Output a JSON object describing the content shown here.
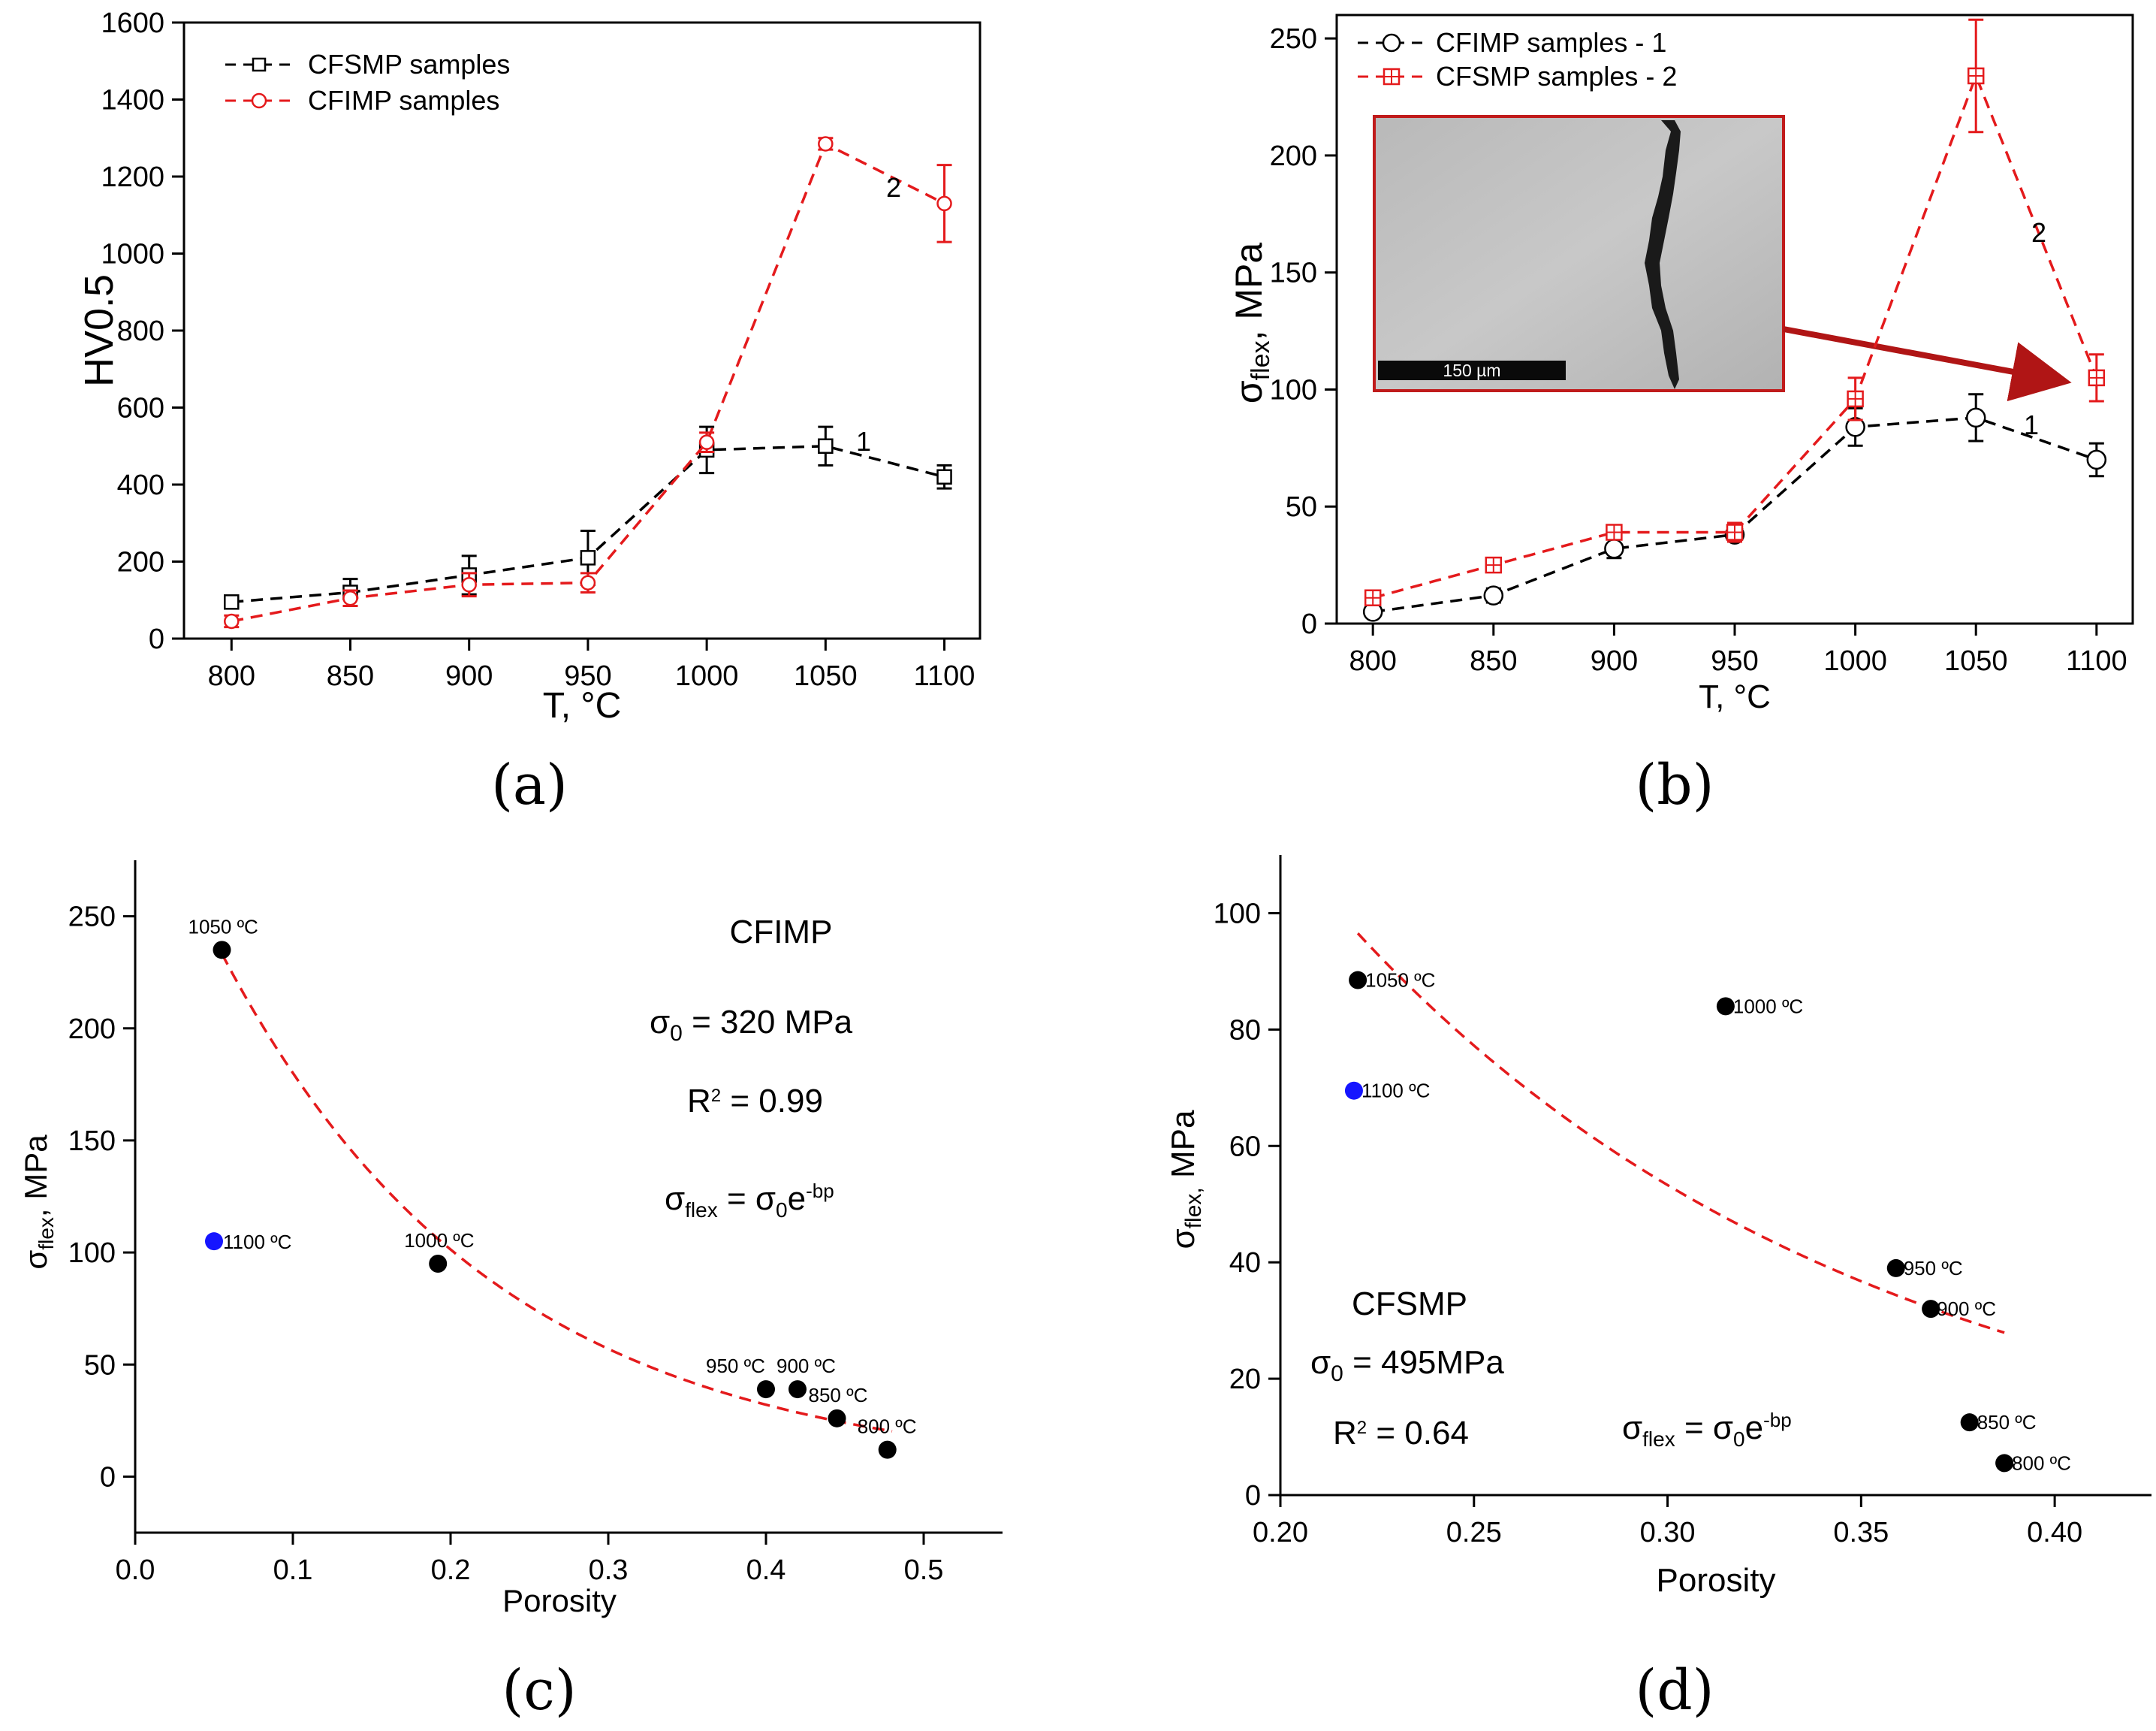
{
  "chart_data": [
    {
      "id": "a",
      "type": "line",
      "panel_label": "(a)",
      "xlabel": "T, °C",
      "ylabel": "HV0.5",
      "xlim": [
        780,
        1115
      ],
      "ylim": [
        0,
        1600
      ],
      "xticks": [
        800,
        850,
        900,
        950,
        1000,
        1050,
        1100
      ],
      "yticks": [
        0,
        200,
        400,
        600,
        800,
        1000,
        1200,
        1400,
        1600
      ],
      "x": [
        800,
        850,
        900,
        950,
        1000,
        1050,
        1100
      ],
      "legend": [
        "CFSMP samples",
        "CFIMP samples"
      ],
      "series": [
        {
          "name": "CFSMP samples",
          "curve_label": "1",
          "color": "#000000",
          "marker": "square",
          "values": [
            95,
            120,
            165,
            210,
            490,
            500,
            420
          ],
          "errors": [
            15,
            35,
            50,
            70,
            60,
            50,
            30
          ]
        },
        {
          "name": "CFIMP samples",
          "curve_label": "2",
          "color": "#e41a1c",
          "marker": "circle",
          "values": [
            45,
            105,
            140,
            145,
            510,
            1285,
            1130
          ],
          "errors": [
            15,
            20,
            30,
            25,
            25,
            15,
            100
          ]
        }
      ]
    },
    {
      "id": "b",
      "type": "line",
      "panel_label": "(b)",
      "xlabel": "T, °C",
      "ylabel_main": "σ",
      "ylabel_sub": "flex",
      "ylabel_tail": ", MPa",
      "xlim": [
        785,
        1115
      ],
      "ylim": [
        0,
        260
      ],
      "xticks": [
        800,
        850,
        900,
        950,
        1000,
        1050,
        1100
      ],
      "yticks": [
        0,
        50,
        100,
        150,
        200,
        250
      ],
      "x": [
        800,
        850,
        900,
        950,
        1000,
        1050,
        1100
      ],
      "legend": [
        "CFIMP samples - 1",
        "CFSMP samples - 2"
      ],
      "inset_scale_bar": "150 µm",
      "series": [
        {
          "name": "CFIMP samples - 1",
          "curve_label": "1",
          "color": "#000000",
          "marker": "circle",
          "values": [
            5,
            12,
            32,
            38,
            84,
            88,
            70
          ],
          "errors": [
            2,
            3,
            4,
            3,
            8,
            10,
            7
          ]
        },
        {
          "name": "CFSMP samples - 2",
          "curve_label": "2",
          "color": "#e41a1c",
          "marker": "square-plus",
          "values": [
            11,
            25,
            39,
            39,
            96,
            234,
            105
          ],
          "errors": [
            2,
            2,
            3,
            4,
            9,
            24,
            10
          ]
        }
      ]
    },
    {
      "id": "c",
      "type": "scatter",
      "panel_label": "(c)",
      "xlabel": "Porosity",
      "ylabel_main": "σ",
      "ylabel_sub": "flex",
      "ylabel_tail": ", MPa",
      "xlim": [
        0.0,
        0.55
      ],
      "ylim": [
        -25,
        275
      ],
      "xticks": [
        0.0,
        0.1,
        0.2,
        0.3,
        0.4,
        0.5
      ],
      "yticks": [
        0,
        50,
        100,
        150,
        200,
        250
      ],
      "title": "CFIMP",
      "sigma0_text": " = 320 MPa",
      "r2_text": " = 0.99",
      "fit": {
        "sigma0": 320,
        "b": 5.75,
        "x_range": [
          0.055,
          0.48
        ]
      },
      "points": [
        {
          "x": 0.055,
          "y": 235,
          "label": "1050 ºC",
          "color": "#000000"
        },
        {
          "x": 0.05,
          "y": 105,
          "label": "1100 ºC",
          "color": "#1515ff"
        },
        {
          "x": 0.192,
          "y": 95,
          "label": "1000 ºC",
          "color": "#000000"
        },
        {
          "x": 0.4,
          "y": 39,
          "label": "950 ºC",
          "color": "#000000"
        },
        {
          "x": 0.42,
          "y": 39,
          "label": "900 ºC",
          "color": "#000000"
        },
        {
          "x": 0.445,
          "y": 26,
          "label": "850 ºC",
          "color": "#000000"
        },
        {
          "x": 0.477,
          "y": 12,
          "label": "800 ºC",
          "color": "#000000"
        }
      ]
    },
    {
      "id": "d",
      "type": "scatter",
      "panel_label": "(d)",
      "xlabel": "Porosity",
      "ylabel_main": "σ",
      "ylabel_sub": "flex,",
      "ylabel_tail": " MPa",
      "xlim": [
        0.2,
        0.425
      ],
      "ylim": [
        0,
        110
      ],
      "xticks": [
        0.2,
        0.25,
        0.3,
        0.35,
        0.4
      ],
      "yticks": [
        0,
        20,
        40,
        60,
        80,
        100
      ],
      "title": "CFSMP",
      "sigma0_text": " = 495MPa",
      "r2_text": " = 0.64",
      "fit": {
        "sigma0": 495,
        "b": 7.43,
        "x_range": [
          0.22,
          0.387
        ]
      },
      "points": [
        {
          "x": 0.22,
          "y": 88.5,
          "label": "1050 ºC",
          "color": "#000000"
        },
        {
          "x": 0.219,
          "y": 69.5,
          "label": "1100 ºC",
          "color": "#1515ff"
        },
        {
          "x": 0.315,
          "y": 84,
          "label": "1000 ºC",
          "color": "#000000"
        },
        {
          "x": 0.359,
          "y": 39,
          "label": "950 ºC",
          "color": "#000000"
        },
        {
          "x": 0.368,
          "y": 32,
          "label": "900 ºC",
          "color": "#000000"
        },
        {
          "x": 0.378,
          "y": 12.5,
          "label": "850 ºC",
          "color": "#000000"
        },
        {
          "x": 0.387,
          "y": 5.5,
          "label": "800 ºC",
          "color": "#000000"
        }
      ]
    }
  ],
  "formula": {
    "lhs": "σ",
    "lhs_sub": "flex",
    "eq": " = σ",
    "rhs_sub": "0",
    "rhs_tail": "e",
    "sup": "-bp"
  },
  "sigma_symbol": "σ",
  "sigma_sub": "0",
  "r_symbol": "R",
  "r_sup": "2"
}
